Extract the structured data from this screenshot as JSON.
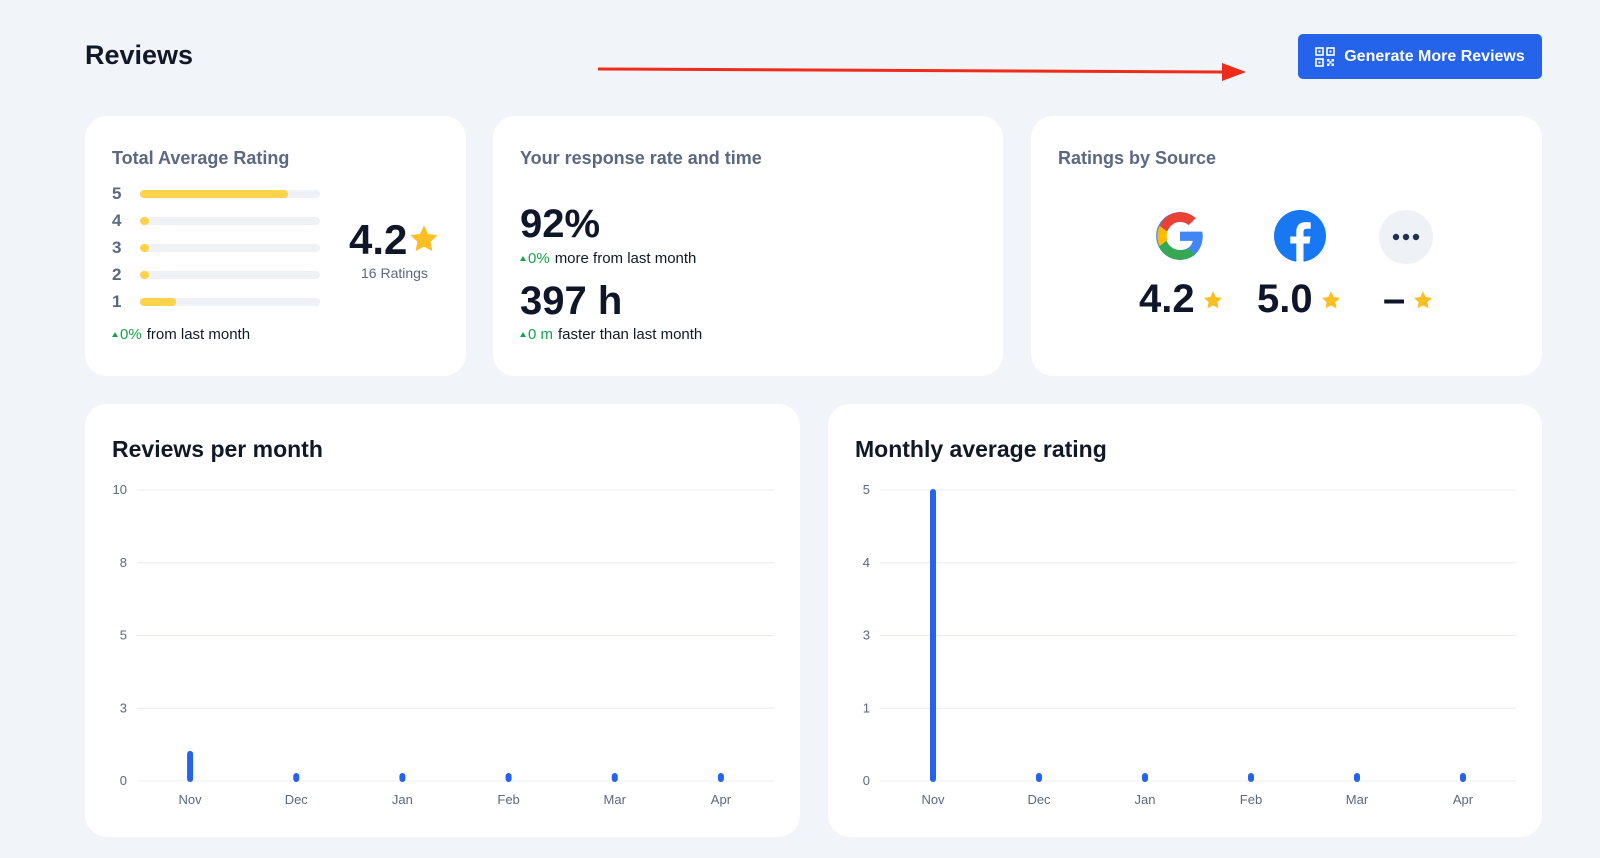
{
  "header": {
    "title": "Reviews",
    "generate_button_label": "Generate More Reviews",
    "accent": "#2563eb",
    "annotation_color": "#ef2b1a"
  },
  "total_average": {
    "title": "Total Average Rating",
    "distribution": [
      {
        "stars": "5",
        "fraction": 0.82
      },
      {
        "stars": "4",
        "fraction": 0.05
      },
      {
        "stars": "3",
        "fraction": 0.05
      },
      {
        "stars": "2",
        "fraction": 0.05
      },
      {
        "stars": "1",
        "fraction": 0.2
      }
    ],
    "average": "4.2",
    "count_label": "16 Ratings",
    "delta": "0%",
    "delta_text": "from last month"
  },
  "response": {
    "title": "Your response rate and time",
    "rate": "92%",
    "rate_delta": "0%",
    "rate_delta_text": "more from last month",
    "time": "397 h",
    "time_delta": "0 m",
    "time_delta_text": "faster than last month"
  },
  "sources": {
    "title": "Ratings by Source",
    "items": [
      {
        "icon": "google-icon",
        "value": "4.2"
      },
      {
        "icon": "facebook-icon",
        "value": "5.0"
      },
      {
        "icon": "more-icon",
        "value": "–"
      }
    ]
  },
  "chart_data": [
    {
      "type": "bar",
      "title": "Reviews per month",
      "categories": [
        "Nov",
        "Dec",
        "Jan",
        "Feb",
        "Mar",
        "Apr"
      ],
      "values": [
        1,
        0,
        0,
        0,
        0,
        0
      ],
      "ytick_labels": [
        "0",
        "3",
        "5",
        "8",
        "10"
      ],
      "ylim": [
        0,
        10
      ],
      "grid": true
    },
    {
      "type": "bar",
      "title": "Monthly average rating",
      "categories": [
        "Nov",
        "Dec",
        "Jan",
        "Feb",
        "Mar",
        "Apr"
      ],
      "values": [
        5,
        0,
        0,
        0,
        0,
        0
      ],
      "ytick_labels": [
        "0",
        "1",
        "3",
        "4",
        "5"
      ],
      "ylim": [
        0,
        5
      ],
      "grid": true
    }
  ]
}
